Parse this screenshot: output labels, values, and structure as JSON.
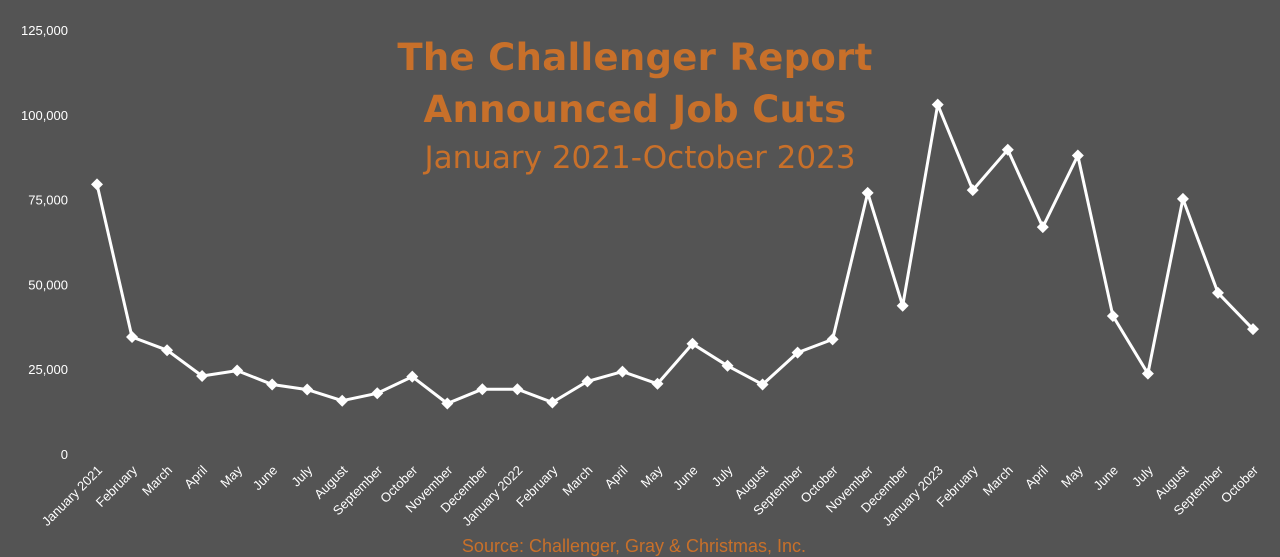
{
  "chart_data": {
    "type": "line",
    "title_line1": "The Challenger Report",
    "title_line2": "Announced Job Cuts",
    "subtitle": "January 2021-October 2023",
    "source": "Source: Challenger, Gray & Christmas, Inc.",
    "xlabel": "",
    "ylabel": "",
    "ylim": [
      0,
      125000
    ],
    "yticks": [
      "0",
      "25,000",
      "50,000",
      "75,000",
      "100,000",
      "125,000"
    ],
    "ytick_values": [
      0,
      25000,
      50000,
      75000,
      100000,
      125000
    ],
    "grid": false,
    "legend": "none",
    "categories": [
      "January 2021",
      "February",
      "March",
      "April",
      "May",
      "June",
      "July",
      "August",
      "September",
      "October",
      "November",
      "December",
      "January 2022",
      "February",
      "March",
      "April",
      "May",
      "June",
      "July",
      "August",
      "September",
      "October",
      "November",
      "December",
      "January 2023",
      "February",
      "March",
      "April",
      "May",
      "June",
      "July",
      "August",
      "September",
      "October"
    ],
    "series": [
      {
        "values": [
          79500,
          34500,
          30600,
          23000,
          24600,
          20500,
          19000,
          15700,
          17900,
          22800,
          14900,
          19100,
          19100,
          15200,
          21400,
          24300,
          20700,
          32500,
          26000,
          20500,
          29900,
          33800,
          77000,
          43700,
          103000,
          77800,
          89700,
          66900,
          88000,
          40700,
          23700,
          75200,
          47500,
          36800
        ]
      }
    ],
    "colors": {
      "background": "#545454",
      "line": "#ffffff",
      "title": "#c8702a",
      "axis_text": "#ffffff"
    }
  }
}
